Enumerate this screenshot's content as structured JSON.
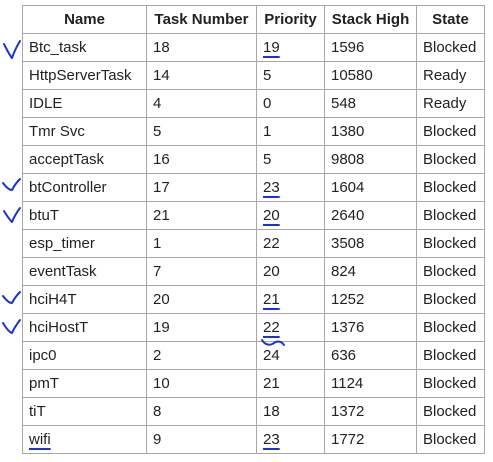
{
  "table": {
    "headers": {
      "name": "Name",
      "task_number": "Task Number",
      "priority": "Priority",
      "stack_high": "Stack High",
      "state": "State"
    },
    "rows": [
      {
        "name": "Btc_task",
        "task_number": "18",
        "priority": "19",
        "stack_high": "1596",
        "state": "Blocked",
        "marked": true
      },
      {
        "name": "HttpServerTask",
        "task_number": "14",
        "priority": "5",
        "stack_high": "10580",
        "state": "Ready",
        "marked": false
      },
      {
        "name": "IDLE",
        "task_number": "4",
        "priority": "0",
        "stack_high": "548",
        "state": "Ready",
        "marked": false
      },
      {
        "name": "Tmr Svc",
        "task_number": "5",
        "priority": "1",
        "stack_high": "1380",
        "state": "Blocked",
        "marked": false
      },
      {
        "name": "acceptTask",
        "task_number": "16",
        "priority": "5",
        "stack_high": "9808",
        "state": "Blocked",
        "marked": false
      },
      {
        "name": "btController",
        "task_number": "17",
        "priority": "23",
        "stack_high": "1604",
        "state": "Blocked",
        "marked": true
      },
      {
        "name": "btuT",
        "task_number": "21",
        "priority": "20",
        "stack_high": "2640",
        "state": "Blocked",
        "marked": true
      },
      {
        "name": "esp_timer",
        "task_number": "1",
        "priority": "22",
        "stack_high": "3508",
        "state": "Blocked",
        "marked": false
      },
      {
        "name": "eventTask",
        "task_number": "7",
        "priority": "20",
        "stack_high": "824",
        "state": "Blocked",
        "marked": false
      },
      {
        "name": "hciH4T",
        "task_number": "20",
        "priority": "21",
        "stack_high": "1252",
        "state": "Blocked",
        "marked": true
      },
      {
        "name": "hciHostT",
        "task_number": "19",
        "priority": "22",
        "stack_high": "1376",
        "state": "Blocked",
        "marked": true
      },
      {
        "name": "ipc0",
        "task_number": "2",
        "priority": "24",
        "stack_high": "636",
        "state": "Blocked",
        "marked": false
      },
      {
        "name": "pmT",
        "task_number": "10",
        "priority": "21",
        "stack_high": "1124",
        "state": "Blocked",
        "marked": false
      },
      {
        "name": "tiT",
        "task_number": "8",
        "priority": "18",
        "stack_high": "1372",
        "state": "Blocked",
        "marked": false
      },
      {
        "name": "wifi",
        "task_number": "9",
        "priority": "23",
        "stack_high": "1772",
        "state": "Blocked",
        "marked": true
      }
    ]
  },
  "annotation_color": "#1a33d6",
  "annotation_icons": [
    "checkmark-icon",
    "underline-mark-icon"
  ]
}
